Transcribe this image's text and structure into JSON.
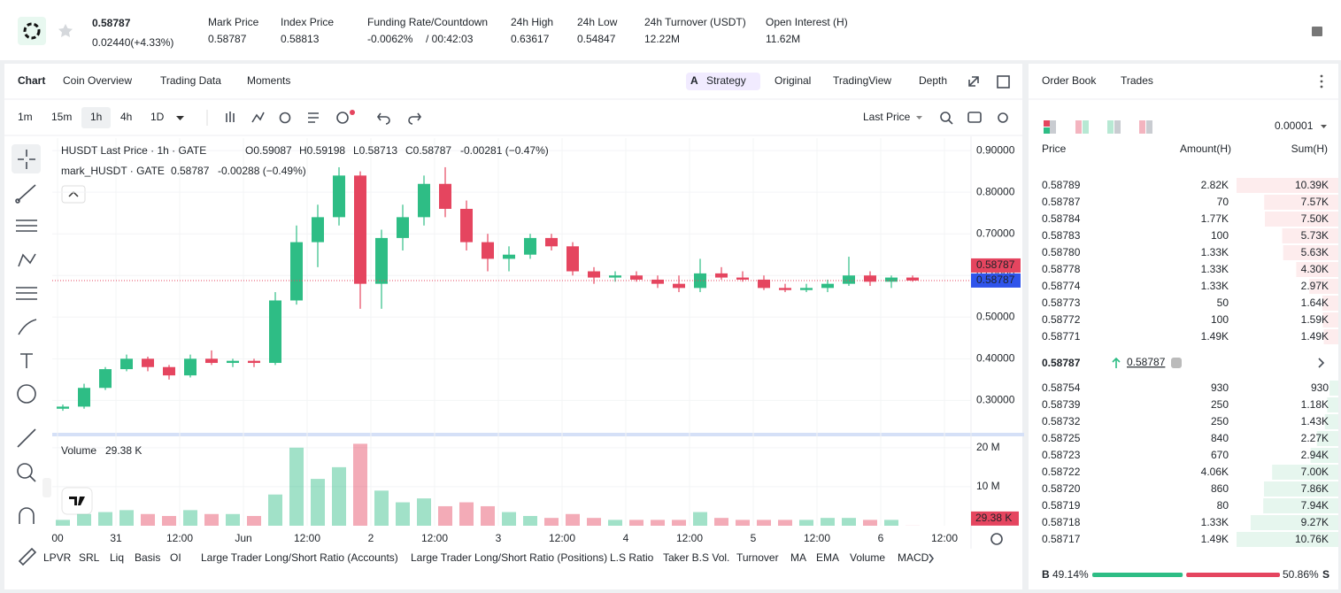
{
  "header": {
    "price": "0.58787",
    "change": "0.02440(+4.33%)",
    "stats": [
      {
        "label": "Mark Price",
        "value": "0.58787"
      },
      {
        "label": "Index Price",
        "value": "0.58813"
      },
      {
        "label": "Funding Rate/Countdown",
        "value": "-0.0062%",
        "extra": "/ 00:42:03"
      },
      {
        "label": "24h High",
        "value": "0.63617"
      },
      {
        "label": "24h Low",
        "value": "0.54847"
      },
      {
        "label": "24h Turnover (USDT)",
        "value": "12.22M"
      },
      {
        "label": "Open Interest (H)",
        "value": "11.62M"
      }
    ]
  },
  "tabs": [
    "Chart",
    "Coin Overview",
    "Trading Data",
    "Moments"
  ],
  "view_tabs": [
    "Strategy",
    "Original",
    "TradingView",
    "Depth"
  ],
  "intervals": [
    "1m",
    "15m",
    "1h",
    "4h",
    "1D"
  ],
  "price_type": "Last Price",
  "legend": {
    "title": "HUSDT Last Price · 1h · GATE",
    "ohlc": [
      "O0.59087",
      "H0.59198",
      "L0.58713",
      "C0.58787",
      "-0.00281 (−0.47%)"
    ],
    "mark_title": "mark_HUSDT · GATE",
    "mark_value": "0.58787",
    "mark_change": "-0.00288 (−0.49%)",
    "volume_title": "Volume",
    "volume_value": "29.38 K"
  },
  "chart_data": {
    "type": "candlestick",
    "up_color": "#2ebd85",
    "down_color": "#e5455f",
    "x": [
      -10,
      -6,
      -2,
      2,
      6,
      10,
      14,
      18,
      22,
      26,
      30,
      34,
      38,
      42,
      46,
      50,
      54,
      58,
      62,
      66,
      70,
      74,
      78,
      82,
      86,
      90,
      94,
      98,
      102,
      106,
      110,
      114,
      118,
      122,
      126,
      130,
      134,
      138,
      142,
      146,
      150
    ],
    "open": [
      0.28,
      0.285,
      0.33,
      0.375,
      0.4,
      0.38,
      0.36,
      0.4,
      0.39,
      0.395,
      0.39,
      0.54,
      0.68,
      0.74,
      0.84,
      0.58,
      0.69,
      0.74,
      0.82,
      0.76,
      0.68,
      0.64,
      0.65,
      0.69,
      0.67,
      0.61,
      0.595,
      0.6,
      0.59,
      0.58,
      0.57,
      0.605,
      0.595,
      0.59,
      0.57,
      0.565,
      0.57,
      0.58,
      0.6,
      0.585,
      0.595
    ],
    "high": [
      0.29,
      0.34,
      0.38,
      0.41,
      0.405,
      0.385,
      0.41,
      0.42,
      0.4,
      0.4,
      0.56,
      0.72,
      0.77,
      0.86,
      0.85,
      0.71,
      0.77,
      0.84,
      0.86,
      0.78,
      0.7,
      0.67,
      0.7,
      0.7,
      0.68,
      0.62,
      0.61,
      0.61,
      0.6,
      0.6,
      0.64,
      0.62,
      0.61,
      0.6,
      0.58,
      0.58,
      0.59,
      0.645,
      0.61,
      0.6,
      0.6
    ],
    "low": [
      0.275,
      0.28,
      0.325,
      0.37,
      0.37,
      0.35,
      0.355,
      0.385,
      0.38,
      0.38,
      0.385,
      0.53,
      0.62,
      0.72,
      0.52,
      0.52,
      0.66,
      0.72,
      0.74,
      0.66,
      0.61,
      0.61,
      0.64,
      0.66,
      0.6,
      0.58,
      0.585,
      0.585,
      0.57,
      0.56,
      0.56,
      0.59,
      0.585,
      0.565,
      0.56,
      0.56,
      0.56,
      0.575,
      0.575,
      0.57,
      0.585
    ],
    "close": [
      0.285,
      0.33,
      0.375,
      0.4,
      0.38,
      0.36,
      0.4,
      0.39,
      0.395,
      0.39,
      0.54,
      0.68,
      0.74,
      0.84,
      0.58,
      0.69,
      0.74,
      0.82,
      0.76,
      0.68,
      0.64,
      0.65,
      0.69,
      0.67,
      0.61,
      0.595,
      0.6,
      0.59,
      0.58,
      0.57,
      0.605,
      0.595,
      0.59,
      0.57,
      0.565,
      0.57,
      0.58,
      0.6,
      0.585,
      0.595,
      0.58787
    ],
    "volume": [
      1500000,
      3000000,
      3500000,
      4000000,
      3000000,
      2500000,
      4000000,
      3000000,
      3000000,
      2500000,
      8000000,
      20000000,
      12000000,
      15000000,
      21000000,
      9000000,
      6000000,
      7000000,
      5000000,
      6000000,
      5000000,
      3500000,
      2500000,
      2000000,
      3000000,
      2000000,
      1500000,
      1500000,
      1500000,
      1500000,
      3500000,
      2000000,
      1500000,
      1500000,
      1500000,
      1500000,
      2000000,
      2000000,
      1500000,
      1500000,
      29380
    ],
    "xlim": [
      -12,
      161
    ],
    "xticks": [
      {
        "value": -11,
        "label": "00"
      },
      {
        "value": 0,
        "label": "31"
      },
      {
        "value": 12,
        "label": "12:00"
      },
      {
        "value": 24,
        "label": "Jun"
      },
      {
        "value": 36,
        "label": "12:00"
      },
      {
        "value": 48,
        "label": "2"
      },
      {
        "value": 60,
        "label": "12:00"
      },
      {
        "value": 72,
        "label": "3"
      },
      {
        "value": 84,
        "label": "12:00"
      },
      {
        "value": 96,
        "label": "4"
      },
      {
        "value": 108,
        "label": "12:00"
      },
      {
        "value": 120,
        "label": "5"
      },
      {
        "value": 132,
        "label": "12:00"
      },
      {
        "value": 144,
        "label": "6"
      },
      {
        "value": 156,
        "label": "12:00"
      }
    ],
    "ylim": [
      0.22,
      0.93
    ],
    "yticks": [
      {
        "value": 0.3,
        "label": "0.30000"
      },
      {
        "value": 0.4,
        "label": "0.40000"
      },
      {
        "value": 0.5,
        "label": "0.50000"
      },
      {
        "value": 0.6,
        "label": "0.60000"
      },
      {
        "value": 0.7,
        "label": "0.70000"
      },
      {
        "value": 0.8,
        "label": "0.80000"
      },
      {
        "value": 0.9,
        "label": "0.90000"
      }
    ],
    "volume_ylim": [
      0,
      22000000
    ],
    "volume_yticks": [
      {
        "value": 10000000,
        "label": "10 M"
      },
      {
        "value": 20000000,
        "label": "20 M"
      }
    ],
    "last_price": {
      "value": 0.58787,
      "label": "0.58787"
    },
    "mark_price": {
      "value": 0.58787,
      "label": "0.58787"
    },
    "last_volume": {
      "value": 29380,
      "label": "29.38 K"
    },
    "grid": true
  },
  "indicators": [
    "LPVR",
    "SRL",
    "Liq",
    "Basis",
    "OI",
    "Large Trader Long/Short Ratio (Accounts)",
    "Large Trader Long/Short Ratio (Positions)",
    "L.S Ratio",
    "Taker B.S Vol.",
    "Turnover",
    "MA",
    "EMA",
    "Volume",
    "MACD"
  ],
  "order_book": {
    "tabs": [
      "Order Book",
      "Trades"
    ],
    "precision": "0.00001",
    "columns": [
      "Price",
      "Amount(H)",
      "Sum(H)"
    ],
    "asks": [
      {
        "price": "0.58789",
        "amount": "2.82K",
        "sum": {
          "value": 10390,
          "label": "10.39K"
        }
      },
      {
        "price": "0.58787",
        "amount": "70",
        "sum": {
          "value": 7570,
          "label": "7.57K"
        }
      },
      {
        "price": "0.58784",
        "amount": "1.77K",
        "sum": {
          "value": 7500,
          "label": "7.50K"
        }
      },
      {
        "price": "0.58783",
        "amount": "100",
        "sum": {
          "value": 5730,
          "label": "5.73K"
        }
      },
      {
        "price": "0.58780",
        "amount": "1.33K",
        "sum": {
          "value": 5630,
          "label": "5.63K"
        }
      },
      {
        "price": "0.58778",
        "amount": "1.33K",
        "sum": {
          "value": 4300,
          "label": "4.30K"
        }
      },
      {
        "price": "0.58774",
        "amount": "1.33K",
        "sum": {
          "value": 2970,
          "label": "2.97K"
        }
      },
      {
        "price": "0.58773",
        "amount": "50",
        "sum": {
          "value": 1640,
          "label": "1.64K"
        }
      },
      {
        "price": "0.58772",
        "amount": "100",
        "sum": {
          "value": 1590,
          "label": "1.59K"
        }
      },
      {
        "price": "0.58771",
        "amount": "1.49K",
        "sum": {
          "value": 1490,
          "label": "1.49K"
        }
      }
    ],
    "last_price": "0.58787",
    "mark_price": "0.58787",
    "bids": [
      {
        "price": "0.58754",
        "amount": "930",
        "sum": 930
      },
      {
        "price": "0.58739",
        "amount": "250",
        "sum": {
          "value": 1180,
          "label": "1.18K"
        }
      },
      {
        "price": "0.58732",
        "amount": "250",
        "sum": {
          "value": 1430,
          "label": "1.43K"
        }
      },
      {
        "price": "0.58725",
        "amount": "840",
        "sum": {
          "value": 2270,
          "label": "2.27K"
        }
      },
      {
        "price": "0.58723",
        "amount": "670",
        "sum": {
          "value": 2940,
          "label": "2.94K"
        }
      },
      {
        "price": "0.58722",
        "amount": "4.06K",
        "sum": {
          "value": 7000,
          "label": "7.00K"
        }
      },
      {
        "price": "0.58720",
        "amount": "860",
        "sum": {
          "value": 7860,
          "label": "7.86K"
        }
      },
      {
        "price": "0.58719",
        "amount": "80",
        "sum": {
          "value": 7940,
          "label": "7.94K"
        }
      },
      {
        "price": "0.58718",
        "amount": "1.33K",
        "sum": {
          "value": 9270,
          "label": "9.27K"
        }
      },
      {
        "price": "0.58717",
        "amount": "1.49K",
        "sum": {
          "value": 10760,
          "label": "10.76K"
        }
      }
    ],
    "buy_label": "B",
    "buy_ratio": {
      "value": 49.14,
      "label": "49.14%"
    },
    "sell_ratio": {
      "value": 50.86,
      "label": "50.86%"
    },
    "sell_label": "S"
  }
}
